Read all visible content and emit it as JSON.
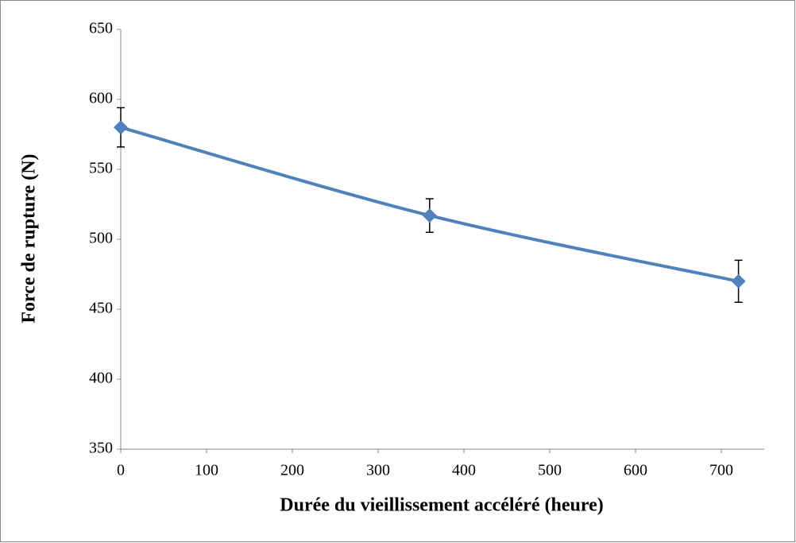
{
  "chart_data": {
    "type": "line",
    "x_label": "Durée du vieillissement accéléré (heure)",
    "y_label": "Force de rupture (N)",
    "x": [
      0,
      360,
      720
    ],
    "series": [
      {
        "name": "Force de rupture",
        "color": "#4f81bd",
        "values": [
          580,
          517,
          470
        ],
        "errors": [
          14,
          12,
          15
        ]
      }
    ],
    "xlim": [
      0,
      750
    ],
    "xticks": [
      0,
      100,
      200,
      300,
      400,
      500,
      600,
      700
    ],
    "ylim": [
      350,
      650
    ],
    "yticks": [
      350,
      400,
      450,
      500,
      550,
      600,
      650
    ],
    "grid": false,
    "smooth": true
  }
}
